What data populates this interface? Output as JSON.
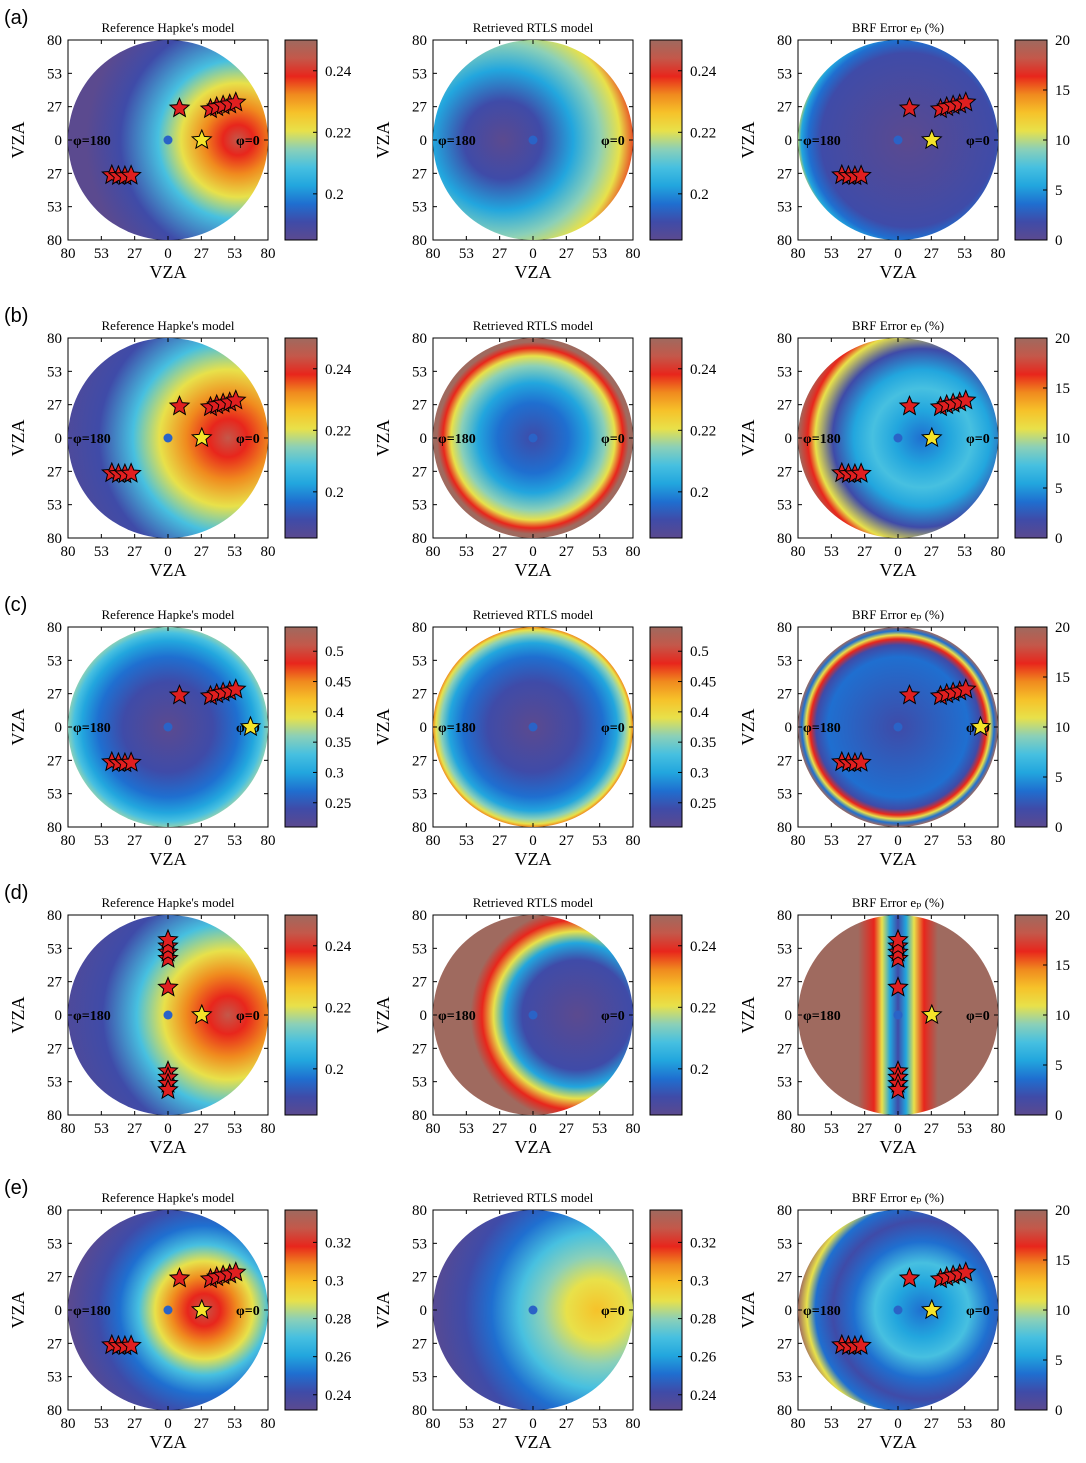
{
  "colormap": [
    "#5b4a8f",
    "#3f4ba8",
    "#1f6fd0",
    "#22a6de",
    "#47c0e0",
    "#8bd0b8",
    "#e8e14a",
    "#f6c22a",
    "#f08a1e",
    "#e8261c",
    "#c4584a",
    "#9f6a5f"
  ],
  "marker_colors": {
    "sample": "#e01f20",
    "sun": "#f5e42a",
    "center": "#2a63c7",
    "outline": "#000000"
  },
  "chart_data": [
    {
      "type": "heatmap",
      "row": "(a)",
      "panel": "Reference Hapke's model",
      "title": "Reference Hapke's model",
      "xlabel": "VZA",
      "ylabel": "VZA",
      "xticks": [
        "80",
        "53",
        "27",
        "0",
        "27",
        "53",
        "80"
      ],
      "yticks": [
        "80",
        "53",
        "27",
        "0",
        "27",
        "53",
        "80"
      ],
      "phi_labels": [
        "φ=180",
        "φ=0"
      ],
      "colorbar_ticks": [
        "0.24",
        "0.22",
        "0.2"
      ],
      "colorbar_range": [
        0.185,
        0.25
      ],
      "sun": {
        "vza": 27,
        "phi": 0
      },
      "samples": [
        {
          "vza": 27,
          "phi": 70
        },
        {
          "vza": 38,
          "phi": 40
        },
        {
          "vza": 45,
          "phi": 35
        },
        {
          "vza": 50,
          "phi": 32
        },
        {
          "vza": 55,
          "phi": 30
        },
        {
          "vza": 60,
          "phi": 28
        },
        {
          "vza": 65,
          "phi": 27
        },
        {
          "vza": 55,
          "phi": 210
        },
        {
          "vza": 52,
          "phi": 215
        },
        {
          "vza": 48,
          "phi": 220
        },
        {
          "vza": 44,
          "phi": 225
        }
      ]
    },
    {
      "type": "heatmap",
      "row": "(a)",
      "panel": "Retrieved RTLS model",
      "title": "Retrieved RTLS model",
      "xlabel": "VZA",
      "ylabel": "VZA",
      "xticks": [
        "80",
        "53",
        "27",
        "0",
        "27",
        "53",
        "80"
      ],
      "yticks": [
        "80",
        "53",
        "27",
        "0",
        "27",
        "53",
        "80"
      ],
      "phi_labels": [
        "φ=180",
        "φ=0"
      ],
      "colorbar_ticks": [
        "0.24",
        "0.22",
        "0.2"
      ],
      "colorbar_range": [
        0.185,
        0.25
      ]
    },
    {
      "type": "heatmap",
      "row": "(a)",
      "panel": "BRF Error",
      "title": "BRF Error eₚ (%)",
      "xlabel": "VZA",
      "ylabel": "VZA",
      "xticks": [
        "80",
        "53",
        "27",
        "0",
        "27",
        "53",
        "80"
      ],
      "yticks": [
        "80",
        "53",
        "27",
        "0",
        "27",
        "53",
        "80"
      ],
      "phi_labels": [
        "φ=180",
        "φ=0"
      ],
      "colorbar_ticks": [
        "20",
        "15",
        "10",
        "5",
        "0"
      ],
      "colorbar_range": [
        0,
        20
      ],
      "sun": {
        "vza": 27,
        "phi": 0
      }
    },
    {
      "type": "heatmap",
      "row": "(b)",
      "panel": "Reference Hapke's model",
      "title": "Reference Hapke's model",
      "xlabel": "VZA",
      "ylabel": "VZA",
      "xticks": [
        "80",
        "53",
        "27",
        "0",
        "27",
        "53",
        "80"
      ],
      "yticks": [
        "80",
        "53",
        "27",
        "0",
        "27",
        "53",
        "80"
      ],
      "phi_labels": [
        "φ=180",
        "φ=0"
      ],
      "colorbar_ticks": [
        "0.24",
        "0.22",
        "0.2"
      ],
      "colorbar_range": [
        0.185,
        0.25
      ],
      "sun": {
        "vza": 27,
        "phi": 0
      }
    },
    {
      "type": "heatmap",
      "row": "(b)",
      "panel": "Retrieved RTLS model",
      "title": "Retrieved RTLS model",
      "xlabel": "VZA",
      "ylabel": "VZA",
      "xticks": [
        "80",
        "53",
        "27",
        "0",
        "27",
        "53",
        "80"
      ],
      "yticks": [
        "80",
        "53",
        "27",
        "0",
        "27",
        "53",
        "80"
      ],
      "phi_labels": [
        "φ=180",
        "φ=0"
      ],
      "colorbar_ticks": [
        "0.24",
        "0.22",
        "0.2"
      ],
      "colorbar_range": [
        0.185,
        0.25
      ]
    },
    {
      "type": "heatmap",
      "row": "(b)",
      "panel": "BRF Error",
      "title": "BRF Error eₚ (%)",
      "xlabel": "VZA",
      "ylabel": "VZA",
      "xticks": [
        "80",
        "53",
        "27",
        "0",
        "27",
        "53",
        "80"
      ],
      "yticks": [
        "80",
        "53",
        "27",
        "0",
        "27",
        "53",
        "80"
      ],
      "phi_labels": [
        "φ=180",
        "φ=0"
      ],
      "colorbar_ticks": [
        "20",
        "15",
        "10",
        "5",
        "0"
      ],
      "colorbar_range": [
        0,
        20
      ],
      "sun": {
        "vza": 27,
        "phi": 0
      }
    },
    {
      "type": "heatmap",
      "row": "(c)",
      "panel": "Reference Hapke's model",
      "title": "Reference Hapke's model",
      "xlabel": "VZA",
      "ylabel": "VZA",
      "xticks": [
        "80",
        "53",
        "27",
        "0",
        "27",
        "53",
        "80"
      ],
      "yticks": [
        "80",
        "53",
        "27",
        "0",
        "27",
        "53",
        "80"
      ],
      "phi_labels": [
        "φ=180",
        "φ=0"
      ],
      "colorbar_ticks": [
        "0.5",
        "0.45",
        "0.4",
        "0.35",
        "0.3",
        "0.25"
      ],
      "colorbar_range": [
        0.21,
        0.54
      ],
      "sun": {
        "vza": 66,
        "phi": 0
      }
    },
    {
      "type": "heatmap",
      "row": "(c)",
      "panel": "Retrieved RTLS model",
      "title": "Retrieved RTLS model",
      "xlabel": "VZA",
      "ylabel": "VZA",
      "xticks": [
        "80",
        "53",
        "27",
        "0",
        "27",
        "53",
        "80"
      ],
      "yticks": [
        "80",
        "53",
        "27",
        "0",
        "27",
        "53",
        "80"
      ],
      "phi_labels": [
        "φ=180",
        "φ=0"
      ],
      "colorbar_ticks": [
        "0.5",
        "0.45",
        "0.4",
        "0.35",
        "0.3",
        "0.25"
      ],
      "colorbar_range": [
        0.21,
        0.54
      ]
    },
    {
      "type": "heatmap",
      "row": "(c)",
      "panel": "BRF Error",
      "title": "BRF Error eₚ (%)",
      "xlabel": "VZA",
      "ylabel": "VZA",
      "xticks": [
        "80",
        "53",
        "27",
        "0",
        "27",
        "53",
        "80"
      ],
      "yticks": [
        "80",
        "53",
        "27",
        "0",
        "27",
        "53",
        "80"
      ],
      "phi_labels": [
        "φ=180",
        "φ=0"
      ],
      "colorbar_ticks": [
        "20",
        "15",
        "10",
        "5",
        "0"
      ],
      "colorbar_range": [
        0,
        20
      ],
      "sun": {
        "vza": 66,
        "phi": 0
      }
    },
    {
      "type": "heatmap",
      "row": "(d)",
      "panel": "Reference Hapke's model",
      "title": "Reference Hapke's model",
      "xlabel": "VZA",
      "ylabel": "VZA",
      "xticks": [
        "80",
        "53",
        "27",
        "0",
        "27",
        "53",
        "80"
      ],
      "yticks": [
        "80",
        "53",
        "27",
        "0",
        "27",
        "53",
        "80"
      ],
      "phi_labels": [
        "φ=180",
        "φ=0"
      ],
      "colorbar_ticks": [
        "0.24",
        "0.22",
        "0.2"
      ],
      "colorbar_range": [
        0.185,
        0.25
      ],
      "sun": {
        "vza": 27,
        "phi": 0
      }
    },
    {
      "type": "heatmap",
      "row": "(d)",
      "panel": "Retrieved RTLS model",
      "title": "Retrieved RTLS model",
      "xlabel": "VZA",
      "ylabel": "VZA",
      "xticks": [
        "80",
        "53",
        "27",
        "0",
        "27",
        "53",
        "80"
      ],
      "yticks": [
        "80",
        "53",
        "27",
        "0",
        "27",
        "53",
        "80"
      ],
      "phi_labels": [
        "φ=180",
        "φ=0"
      ],
      "colorbar_ticks": [
        "0.24",
        "0.22",
        "0.2"
      ],
      "colorbar_range": [
        0.185,
        0.25
      ]
    },
    {
      "type": "heatmap",
      "row": "(d)",
      "panel": "BRF Error",
      "title": "BRF Error eₚ (%)",
      "xlabel": "VZA",
      "ylabel": "VZA",
      "xticks": [
        "80",
        "53",
        "27",
        "0",
        "27",
        "53",
        "80"
      ],
      "yticks": [
        "80",
        "53",
        "27",
        "0",
        "27",
        "53",
        "80"
      ],
      "phi_labels": [
        "φ=180",
        "φ=0"
      ],
      "colorbar_ticks": [
        "20",
        "15",
        "10",
        "5",
        "0"
      ],
      "colorbar_range": [
        0,
        20
      ],
      "sun": {
        "vza": 27,
        "phi": 0
      }
    },
    {
      "type": "heatmap",
      "row": "(e)",
      "panel": "Reference Hapke's model",
      "title": "Reference Hapke's model",
      "xlabel": "VZA",
      "ylabel": "VZA",
      "xticks": [
        "80",
        "53",
        "27",
        "0",
        "27",
        "53",
        "80"
      ],
      "yticks": [
        "80",
        "53",
        "27",
        "0",
        "27",
        "53",
        "80"
      ],
      "phi_labels": [
        "φ=180",
        "φ=0"
      ],
      "colorbar_ticks": [
        "0.32",
        "0.3",
        "0.28",
        "0.26",
        "0.24"
      ],
      "colorbar_range": [
        0.232,
        0.337
      ],
      "sun": {
        "vza": 27,
        "phi": 0
      }
    },
    {
      "type": "heatmap",
      "row": "(e)",
      "panel": "Retrieved RTLS model",
      "title": "Retrieved RTLS model",
      "xlabel": "VZA",
      "ylabel": "VZA",
      "xticks": [
        "80",
        "53",
        "27",
        "0",
        "27",
        "53",
        "80"
      ],
      "yticks": [
        "80",
        "53",
        "27",
        "0",
        "27",
        "53",
        "80"
      ],
      "phi_labels": [
        "",
        "φ=0"
      ],
      "colorbar_ticks": [
        "0.32",
        "0.3",
        "0.28",
        "0.26",
        "0.24"
      ],
      "colorbar_range": [
        0.232,
        0.337
      ]
    },
    {
      "type": "heatmap",
      "row": "(e)",
      "panel": "BRF Error",
      "title": "BRF Error eₚ (%)",
      "xlabel": "VZA",
      "ylabel": "VZA",
      "xticks": [
        "80",
        "53",
        "27",
        "0",
        "27",
        "53",
        "80"
      ],
      "yticks": [
        "80",
        "53",
        "27",
        "0",
        "27",
        "53",
        "80"
      ],
      "phi_labels": [
        "φ=180",
        "φ=0"
      ],
      "colorbar_ticks": [
        "20",
        "15",
        "10",
        "5",
        "0"
      ],
      "colorbar_range": [
        0,
        20
      ],
      "sun": {
        "vza": 27,
        "phi": 0
      }
    }
  ],
  "row_labels": [
    "(a)",
    "(b)",
    "(c)",
    "(d)",
    "(e)"
  ]
}
